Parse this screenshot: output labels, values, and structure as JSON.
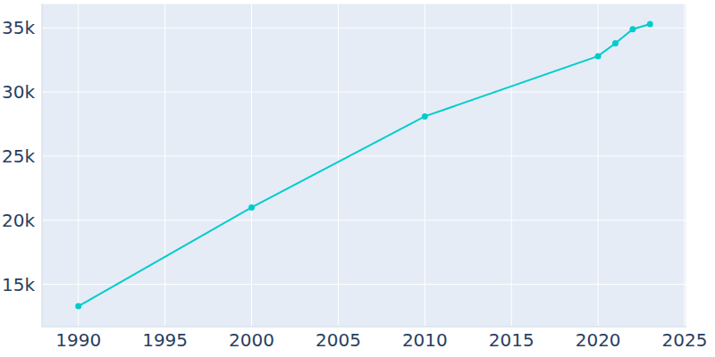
{
  "chart_data": {
    "type": "line",
    "x": [
      1990,
      2000,
      2010,
      2020,
      2021,
      2022,
      2023
    ],
    "values": [
      13300,
      21000,
      28100,
      32800,
      33800,
      34900,
      35300
    ],
    "color": "#00cccc",
    "marker": "circle",
    "xlim": [
      1987.9,
      2025.1
    ],
    "xticks": [
      1990,
      1995,
      2000,
      2005,
      2010,
      2015,
      2020,
      2025
    ],
    "ylim": [
      11700,
      36900
    ],
    "yticks": [
      {
        "value": 15000,
        "label": "15k"
      },
      {
        "value": 20000,
        "label": "20k"
      },
      {
        "value": 25000,
        "label": "25k"
      },
      {
        "value": 30000,
        "label": "30k"
      },
      {
        "value": 35000,
        "label": "35k"
      }
    ],
    "grid": true
  }
}
